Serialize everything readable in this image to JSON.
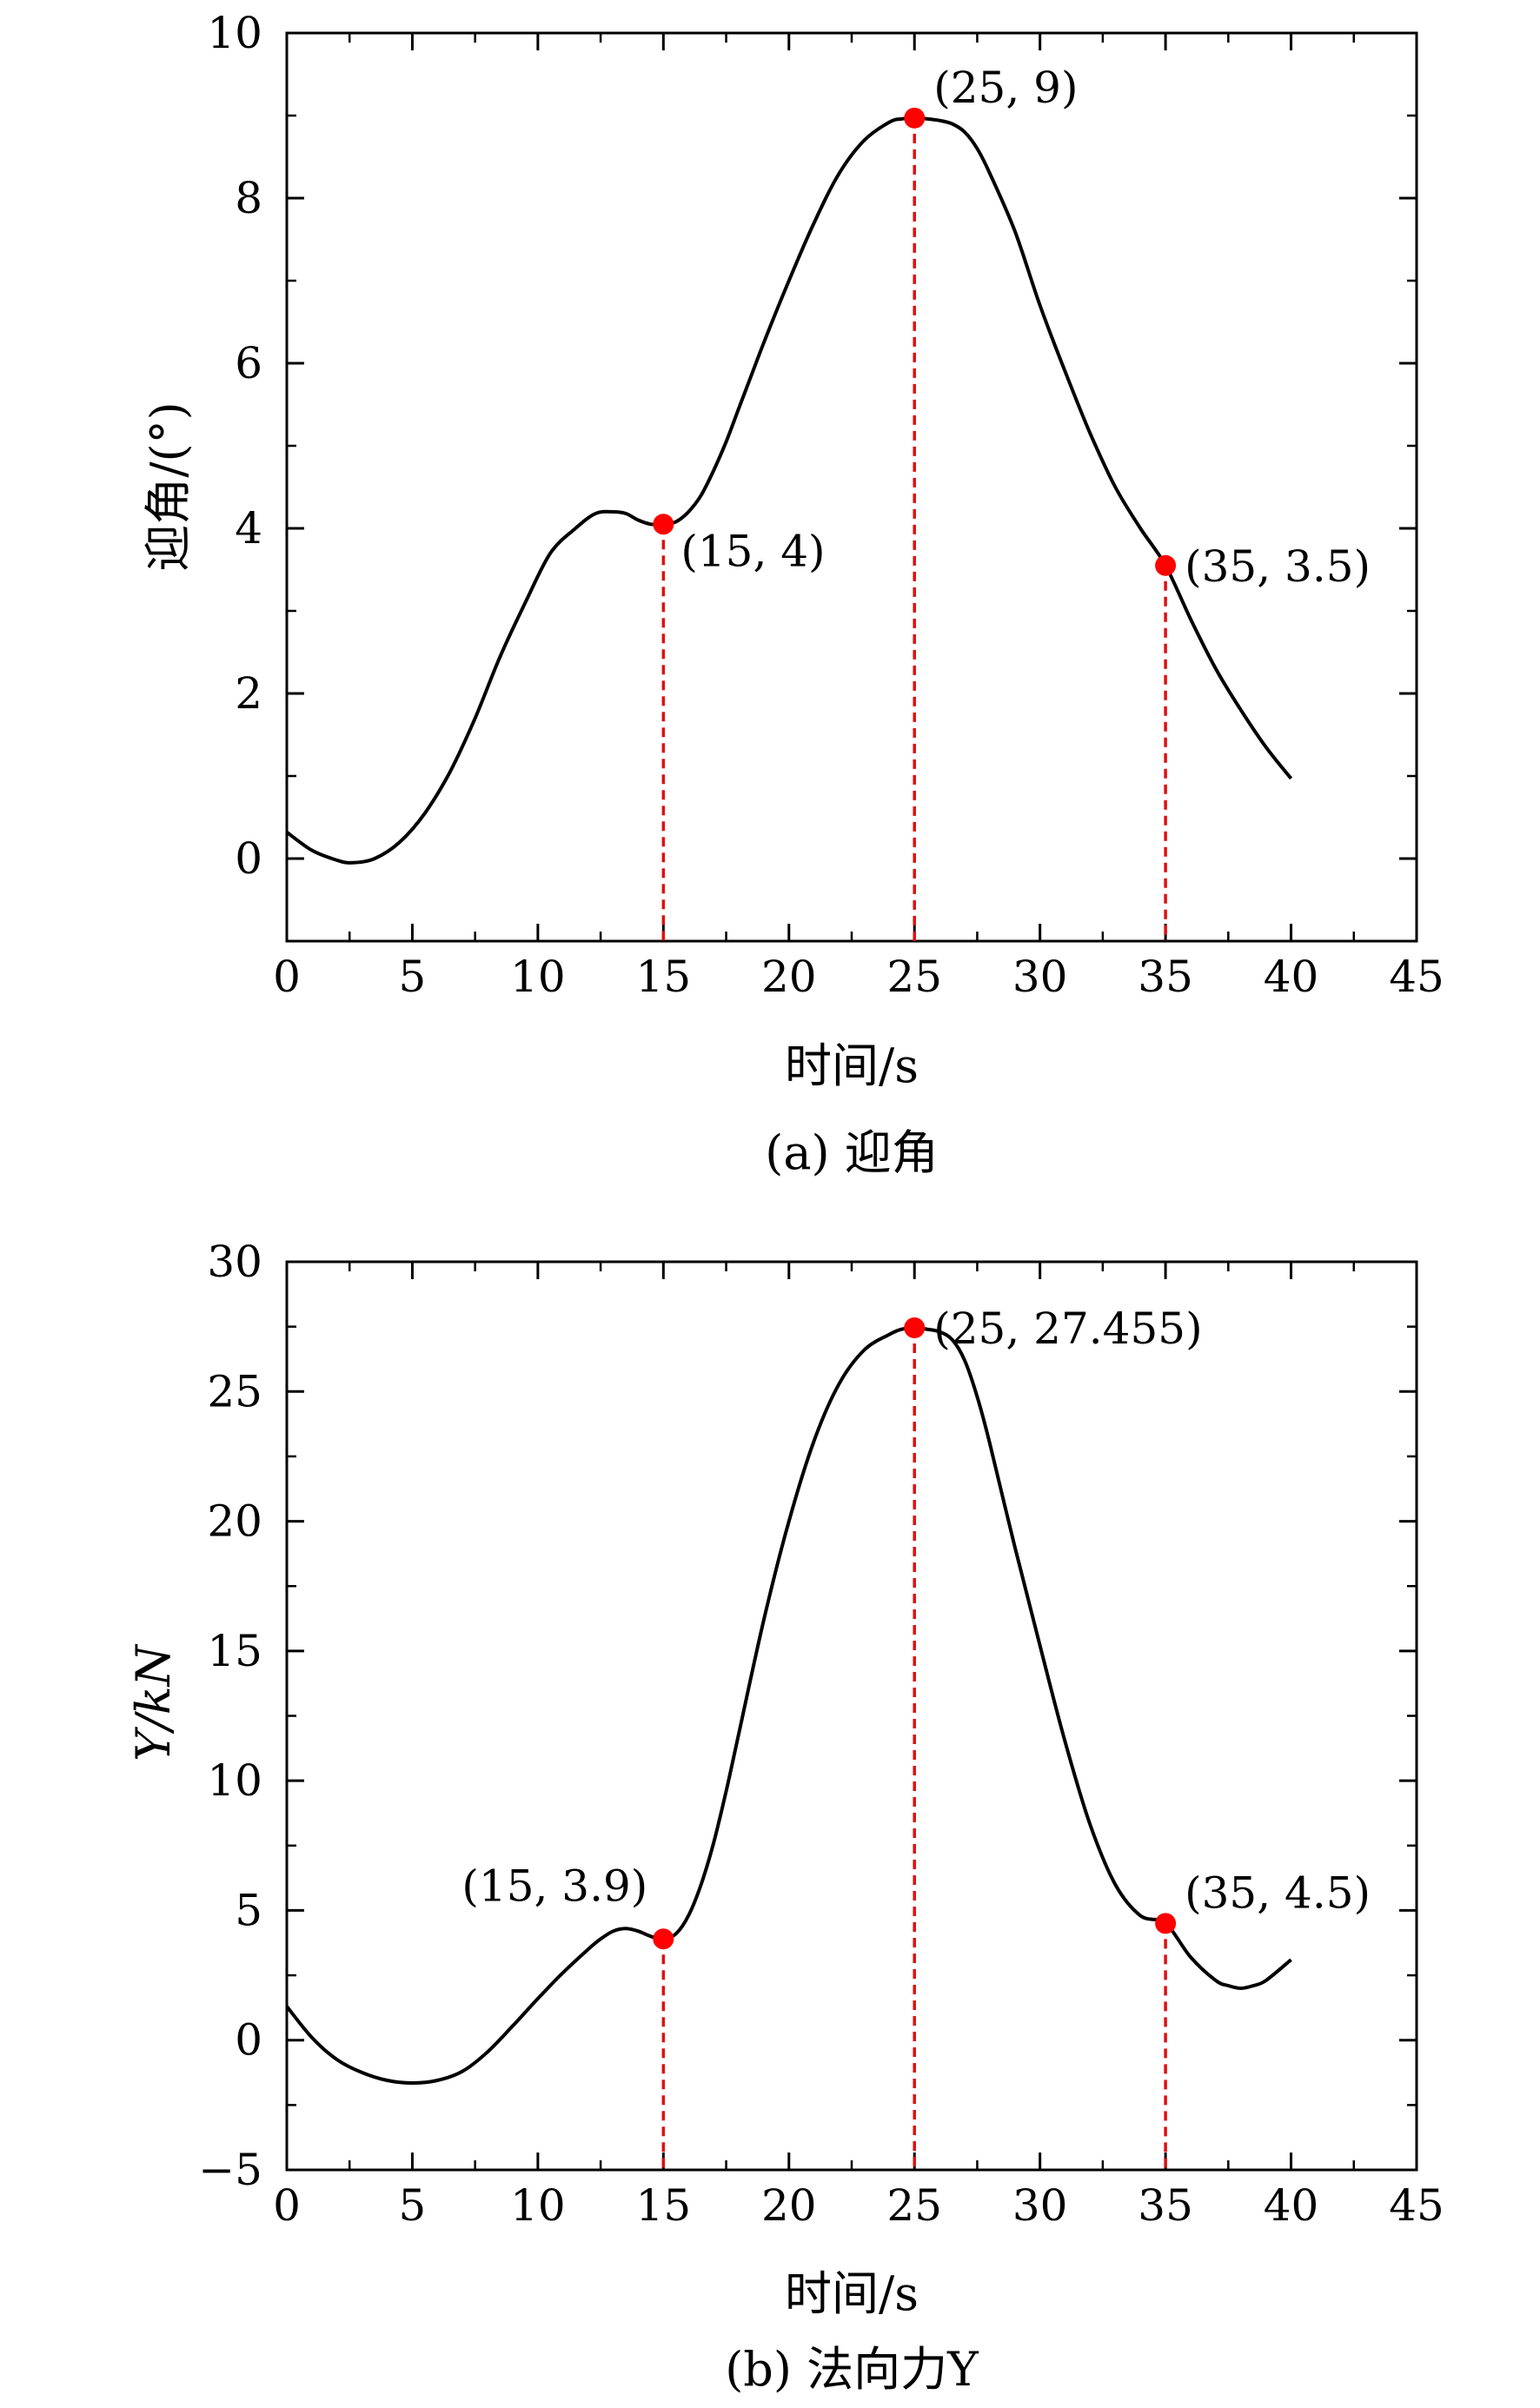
{
  "chart_data": [
    {
      "id": "a",
      "type": "line",
      "caption": "(a) 迎角",
      "xlabel": "时间/s",
      "ylabel": "迎角/(°)",
      "xlim": [
        0,
        45
      ],
      "ylim": [
        -1,
        10
      ],
      "xticks": [
        0,
        5,
        10,
        15,
        20,
        25,
        30,
        35,
        40,
        45
      ],
      "yticks": [
        0,
        2,
        4,
        6,
        8,
        10
      ],
      "xminor": [
        2.5,
        7.5,
        12.5,
        17.5,
        22.5,
        27.5,
        32.5,
        37.5,
        42.5
      ],
      "yminor": [
        -1,
        1,
        3,
        5,
        7,
        9
      ],
      "grid": false,
      "series": [
        {
          "x": [
            0,
            1,
            2,
            2.6,
            3.5,
            4.5,
            5.5,
            6.5,
            7.5,
            8.5,
            9.5,
            10.5,
            11.5,
            12.3,
            13,
            13.5,
            14,
            14.5,
            15,
            15.5,
            16,
            16.5,
            17,
            17.5,
            18,
            18.5,
            19,
            20,
            21,
            22,
            23,
            24,
            24.5,
            25,
            25.5,
            26,
            26.5,
            27,
            27.5,
            28,
            29,
            30,
            31,
            32,
            33,
            34,
            35,
            36,
            37,
            38,
            39,
            40
          ],
          "y": [
            0.32,
            0.1,
            -0.02,
            -0.05,
            0.0,
            0.2,
            0.55,
            1.05,
            1.7,
            2.45,
            3.1,
            3.7,
            4.0,
            4.18,
            4.2,
            4.18,
            4.1,
            4.05,
            4.05,
            4.08,
            4.2,
            4.4,
            4.7,
            5.05,
            5.45,
            5.85,
            6.25,
            7.0,
            7.7,
            8.3,
            8.7,
            8.92,
            8.96,
            8.97,
            8.96,
            8.94,
            8.9,
            8.8,
            8.6,
            8.3,
            7.6,
            6.7,
            5.9,
            5.15,
            4.5,
            4.0,
            3.55,
            2.9,
            2.3,
            1.8,
            1.35,
            0.97
          ]
        }
      ],
      "markers": [
        {
          "x": 15,
          "y": 4.05,
          "label": "(15, 4)",
          "label_pos": "right-below"
        },
        {
          "x": 25,
          "y": 8.97,
          "label": "(25, 9)",
          "label_pos": "right-above"
        },
        {
          "x": 35,
          "y": 3.55,
          "label": "(35, 3.5)",
          "label_pos": "right"
        }
      ],
      "colors": {
        "line": "#000000",
        "marker": "#ff0000",
        "dropline": "#e01010"
      }
    },
    {
      "id": "b",
      "type": "line",
      "caption": "(b) 法向力Y",
      "xlabel": "时间/s",
      "ylabel": "Y/kN",
      "xlim": [
        0,
        45
      ],
      "ylim": [
        -5,
        30
      ],
      "xticks": [
        0,
        5,
        10,
        15,
        20,
        25,
        30,
        35,
        40,
        45
      ],
      "yticks": [
        -5,
        0,
        5,
        10,
        15,
        20,
        25,
        30
      ],
      "xminor": [
        2.5,
        7.5,
        12.5,
        17.5,
        22.5,
        27.5,
        32.5,
        37.5,
        42.5
      ],
      "yminor": [
        -2.5,
        2.5,
        7.5,
        12.5,
        17.5,
        22.5,
        27.5
      ],
      "grid": false,
      "series": [
        {
          "x": [
            0,
            1,
            2,
            3,
            4,
            5,
            6,
            7,
            8,
            9,
            10,
            11,
            12,
            12.5,
            13,
            13.5,
            14,
            14.5,
            15,
            15.5,
            16,
            16.5,
            17,
            17.5,
            18,
            19,
            20,
            21,
            22,
            23,
            24,
            24.5,
            25,
            25.5,
            26,
            26.5,
            27,
            27.5,
            28,
            29,
            30,
            31,
            32,
            33,
            34,
            35,
            36,
            37,
            37.5,
            38,
            38.5,
            39,
            40
          ],
          "y": [
            1.3,
            0.1,
            -0.75,
            -1.25,
            -1.55,
            -1.65,
            -1.55,
            -1.2,
            -0.45,
            0.55,
            1.6,
            2.6,
            3.5,
            3.9,
            4.2,
            4.3,
            4.2,
            4.0,
            3.9,
            4.1,
            4.8,
            6.0,
            7.6,
            9.6,
            11.8,
            16.2,
            20.0,
            23.1,
            25.3,
            26.6,
            27.2,
            27.4,
            27.45,
            27.4,
            27.3,
            27.0,
            26.2,
            24.8,
            23.0,
            19.0,
            15.2,
            11.5,
            8.3,
            6.0,
            4.8,
            4.5,
            3.2,
            2.3,
            2.1,
            2.0,
            2.1,
            2.3,
            3.1
          ]
        }
      ],
      "markers": [
        {
          "x": 15,
          "y": 3.9,
          "label": "(15, 3.9)",
          "label_pos": "left-above"
        },
        {
          "x": 25,
          "y": 27.455,
          "label": "(25, 27.455)",
          "label_pos": "right"
        },
        {
          "x": 35,
          "y": 4.5,
          "label": "(35, 4.5)",
          "label_pos": "right-above"
        }
      ],
      "colors": {
        "line": "#000000",
        "marker": "#ff0000",
        "dropline": "#e01010"
      }
    }
  ]
}
